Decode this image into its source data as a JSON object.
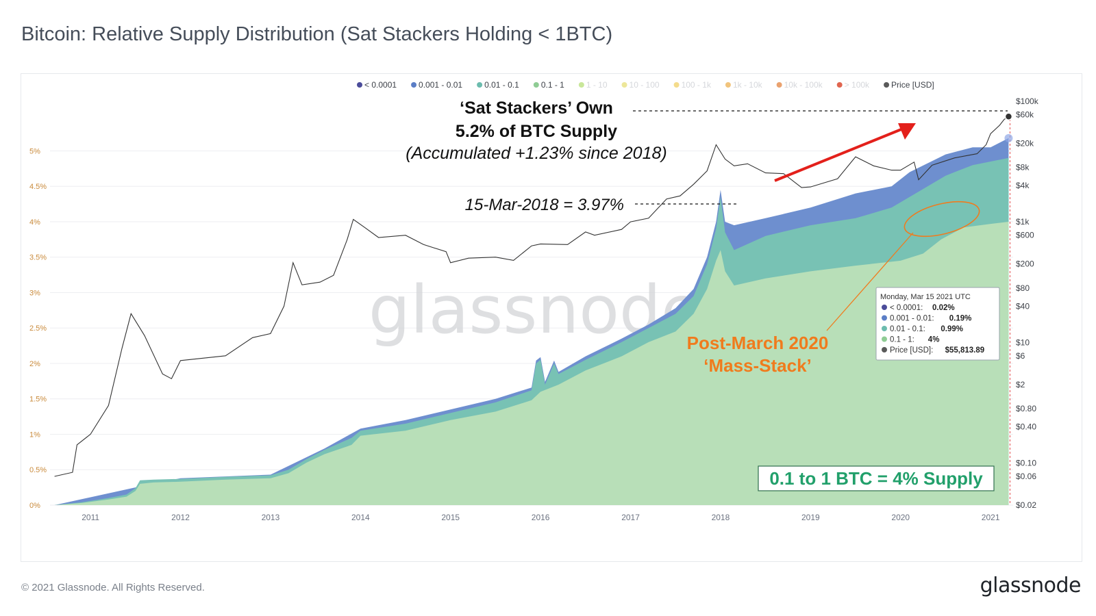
{
  "title": "Bitcoin: Relative Supply Distribution (Sat Stackers Holding < 1BTC)",
  "footer": {
    "copyright": "© 2021 Glassnode. All Rights Reserved.",
    "logo": "glassnode"
  },
  "watermark": "glassnode",
  "chart_data": {
    "type": "area",
    "x_ticks": [
      "2011",
      "2012",
      "2013",
      "2014",
      "2015",
      "2016",
      "2017",
      "2018",
      "2019",
      "2020",
      "2021"
    ],
    "x_range": [
      2010.55,
      2021.25
    ],
    "y_left": {
      "ticks": [
        "0%",
        "0.5%",
        "1%",
        "1.5%",
        "2%",
        "2.5%",
        "3%",
        "3.5%",
        "4%",
        "4.5%",
        "5%"
      ],
      "range": [
        0,
        5.7
      ],
      "unit": "%"
    },
    "y_right": {
      "scale": "log",
      "ticks": [
        "$0.02",
        "$0.06",
        "$0.10",
        "$0.40",
        "$0.80",
        "$2",
        "$6",
        "$10",
        "$40",
        "$80",
        "$200",
        "$600",
        "$1k",
        "$4k",
        "$8k",
        "$20k",
        "$60k",
        "$100k"
      ],
      "range": [
        0.02,
        100000
      ]
    },
    "legend": {
      "placement": "top-right",
      "items": [
        {
          "label": "< 0.0001",
          "color": "#4b4c9a",
          "active": true
        },
        {
          "label": "0.001 - 0.01",
          "color": "#5b7ec6",
          "active": true
        },
        {
          "label": "0.01 - 0.1",
          "color": "#6cbcae",
          "active": true
        },
        {
          "label": "0.1 - 1",
          "color": "#8fcc94",
          "active": true
        },
        {
          "label": "1 - 10",
          "color": "#c9e79a",
          "active": false
        },
        {
          "label": "10 - 100",
          "color": "#ede79a",
          "active": false
        },
        {
          "label": "100 - 1k",
          "color": "#f4dc8c",
          "active": false
        },
        {
          "label": "1k - 10k",
          "color": "#f1c47d",
          "active": false
        },
        {
          "label": "10k - 100k",
          "color": "#eaa26f",
          "active": false
        },
        {
          "label": "> 100k",
          "color": "#e0654f",
          "active": false
        },
        {
          "label": "Price [USD]",
          "color": "#5a5a5a",
          "active": true
        }
      ]
    },
    "series": [
      {
        "name": "0.1 - 1",
        "color": "#b8dfb8",
        "points": [
          [
            2010.6,
            0
          ],
          [
            2010.9,
            0.03
          ],
          [
            2011.2,
            0.08
          ],
          [
            2011.4,
            0.12
          ],
          [
            2011.5,
            0.2
          ],
          [
            2011.55,
            0.3
          ],
          [
            2011.7,
            0.32
          ],
          [
            2012.0,
            0.33
          ],
          [
            2012.5,
            0.36
          ],
          [
            2013.0,
            0.38
          ],
          [
            2013.2,
            0.45
          ],
          [
            2013.4,
            0.6
          ],
          [
            2013.6,
            0.72
          ],
          [
            2013.9,
            0.85
          ],
          [
            2014.0,
            0.98
          ],
          [
            2014.5,
            1.05
          ],
          [
            2015.0,
            1.2
          ],
          [
            2015.5,
            1.32
          ],
          [
            2015.9,
            1.48
          ],
          [
            2016.0,
            1.6
          ],
          [
            2016.2,
            1.7
          ],
          [
            2016.5,
            1.9
          ],
          [
            2016.9,
            2.1
          ],
          [
            2017.2,
            2.3
          ],
          [
            2017.5,
            2.45
          ],
          [
            2017.7,
            2.7
          ],
          [
            2017.85,
            3.05
          ],
          [
            2017.95,
            3.45
          ],
          [
            2018.0,
            3.6
          ],
          [
            2018.05,
            3.3
          ],
          [
            2018.15,
            3.1
          ],
          [
            2018.5,
            3.2
          ],
          [
            2019.0,
            3.3
          ],
          [
            2019.5,
            3.38
          ],
          [
            2020.0,
            3.45
          ],
          [
            2020.25,
            3.55
          ],
          [
            2020.45,
            3.75
          ],
          [
            2020.7,
            3.92
          ],
          [
            2021.0,
            3.97
          ],
          [
            2021.2,
            4.0
          ]
        ]
      },
      {
        "name": "0.01 - 0.1",
        "color": "#78c2b4",
        "points": [
          [
            2010.6,
            0
          ],
          [
            2010.9,
            0.04
          ],
          [
            2011.2,
            0.1
          ],
          [
            2011.4,
            0.15
          ],
          [
            2011.5,
            0.24
          ],
          [
            2011.55,
            0.35
          ],
          [
            2011.7,
            0.36
          ],
          [
            2012.0,
            0.37
          ],
          [
            2012.5,
            0.4
          ],
          [
            2013.0,
            0.42
          ],
          [
            2013.2,
            0.5
          ],
          [
            2013.4,
            0.65
          ],
          [
            2013.6,
            0.78
          ],
          [
            2013.9,
            0.95
          ],
          [
            2014.0,
            1.05
          ],
          [
            2014.5,
            1.15
          ],
          [
            2015.0,
            1.3
          ],
          [
            2015.5,
            1.45
          ],
          [
            2015.9,
            1.62
          ],
          [
            2015.95,
            2.0
          ],
          [
            2016.0,
            2.05
          ],
          [
            2016.05,
            1.7
          ],
          [
            2016.15,
            2.0
          ],
          [
            2016.2,
            1.85
          ],
          [
            2016.5,
            2.05
          ],
          [
            2016.9,
            2.3
          ],
          [
            2017.2,
            2.5
          ],
          [
            2017.5,
            2.7
          ],
          [
            2017.7,
            2.95
          ],
          [
            2017.85,
            3.4
          ],
          [
            2017.95,
            3.9
          ],
          [
            2018.0,
            4.35
          ],
          [
            2018.05,
            3.85
          ],
          [
            2018.15,
            3.6
          ],
          [
            2018.5,
            3.8
          ],
          [
            2019.0,
            3.95
          ],
          [
            2019.5,
            4.05
          ],
          [
            2019.9,
            4.2
          ],
          [
            2020.1,
            4.35
          ],
          [
            2020.5,
            4.65
          ],
          [
            2020.8,
            4.8
          ],
          [
            2021.0,
            4.85
          ],
          [
            2021.2,
            4.9
          ]
        ]
      },
      {
        "name": "0.001 - 0.01",
        "color": "#6e8fcf",
        "points": [
          [
            2010.6,
            0
          ],
          [
            2011.5,
            0.25
          ],
          [
            2012.0,
            0.38
          ],
          [
            2013.0,
            0.43
          ],
          [
            2013.6,
            0.8
          ],
          [
            2014.0,
            1.08
          ],
          [
            2014.5,
            1.2
          ],
          [
            2015.0,
            1.35
          ],
          [
            2015.5,
            1.5
          ],
          [
            2015.9,
            1.66
          ],
          [
            2015.95,
            2.04
          ],
          [
            2016.0,
            2.09
          ],
          [
            2016.05,
            1.74
          ],
          [
            2016.15,
            2.04
          ],
          [
            2016.2,
            1.88
          ],
          [
            2016.5,
            2.1
          ],
          [
            2016.9,
            2.35
          ],
          [
            2017.2,
            2.55
          ],
          [
            2017.5,
            2.78
          ],
          [
            2017.7,
            3.05
          ],
          [
            2017.85,
            3.5
          ],
          [
            2017.95,
            4.0
          ],
          [
            2018.0,
            4.45
          ],
          [
            2018.05,
            4.0
          ],
          [
            2018.15,
            3.95
          ],
          [
            2018.5,
            4.05
          ],
          [
            2019.0,
            4.2
          ],
          [
            2019.5,
            4.4
          ],
          [
            2019.9,
            4.5
          ],
          [
            2020.1,
            4.7
          ],
          [
            2020.5,
            4.95
          ],
          [
            2020.8,
            5.05
          ],
          [
            2021.0,
            5.05
          ],
          [
            2021.2,
            5.18
          ]
        ]
      },
      {
        "name": "Price [USD]",
        "color": "#333333",
        "points": [
          [
            2010.6,
            0.06
          ],
          [
            2010.8,
            0.07
          ],
          [
            2010.85,
            0.2
          ],
          [
            2011.0,
            0.3
          ],
          [
            2011.2,
            0.9
          ],
          [
            2011.35,
            8
          ],
          [
            2011.45,
            30
          ],
          [
            2011.6,
            13
          ],
          [
            2011.8,
            3
          ],
          [
            2011.9,
            2.5
          ],
          [
            2012.0,
            5
          ],
          [
            2012.5,
            6
          ],
          [
            2012.8,
            12
          ],
          [
            2013.0,
            14
          ],
          [
            2013.15,
            40
          ],
          [
            2013.25,
            210
          ],
          [
            2013.35,
            90
          ],
          [
            2013.55,
            100
          ],
          [
            2013.7,
            130
          ],
          [
            2013.85,
            500
          ],
          [
            2013.92,
            1100
          ],
          [
            2014.05,
            800
          ],
          [
            2014.2,
            550
          ],
          [
            2014.5,
            600
          ],
          [
            2014.7,
            420
          ],
          [
            2014.95,
            320
          ],
          [
            2015.0,
            210
          ],
          [
            2015.2,
            250
          ],
          [
            2015.5,
            260
          ],
          [
            2015.7,
            230
          ],
          [
            2015.9,
            400
          ],
          [
            2016.0,
            430
          ],
          [
            2016.3,
            420
          ],
          [
            2016.5,
            680
          ],
          [
            2016.6,
            600
          ],
          [
            2016.9,
            750
          ],
          [
            2017.0,
            1000
          ],
          [
            2017.2,
            1150
          ],
          [
            2017.4,
            2400
          ],
          [
            2017.55,
            2700
          ],
          [
            2017.7,
            4200
          ],
          [
            2017.85,
            7000
          ],
          [
            2017.95,
            19000
          ],
          [
            2018.05,
            11000
          ],
          [
            2018.15,
            8500
          ],
          [
            2018.3,
            9200
          ],
          [
            2018.5,
            6500
          ],
          [
            2018.7,
            6300
          ],
          [
            2018.9,
            3700
          ],
          [
            2019.0,
            3800
          ],
          [
            2019.3,
            5200
          ],
          [
            2019.5,
            12000
          ],
          [
            2019.7,
            8500
          ],
          [
            2019.9,
            7200
          ],
          [
            2020.0,
            7200
          ],
          [
            2020.15,
            9800
          ],
          [
            2020.2,
            5000
          ],
          [
            2020.35,
            8700
          ],
          [
            2020.6,
            11500
          ],
          [
            2020.85,
            13500
          ],
          [
            2020.95,
            19000
          ],
          [
            2021.0,
            29000
          ],
          [
            2021.1,
            40000
          ],
          [
            2021.15,
            50000
          ],
          [
            2021.2,
            55813
          ]
        ]
      }
    ],
    "tooltip": {
      "date": "Monday, Mar 15 2021 UTC",
      "rows": [
        {
          "label": "< 0.0001",
          "value": "0.02%",
          "color": "#4b4c9a"
        },
        {
          "label": "0.001 - 0.01",
          "value": "0.19%",
          "color": "#5b7ec6"
        },
        {
          "label": "0.01 - 0.1",
          "value": "0.99%",
          "color": "#6cbcae"
        },
        {
          "label": "0.1 - 1",
          "value": "4%",
          "color": "#8fcc94"
        },
        {
          "label": "Price [USD]",
          "value": "$55,813.89",
          "color": "#5a5a5a"
        }
      ]
    },
    "annotations": {
      "headline_1": "‘Sat Stackers’ Own",
      "headline_2": "5.2% of BTC Supply",
      "headline_3": "(Accumulated +1.23% since 2018)",
      "mar2018": "15-Mar-2018 = 3.97%",
      "mass_stack_1": "Post-March 2020",
      "mass_stack_2": "‘Mass-Stack’",
      "supply_box": "0.1 to 1 BTC = 4% Supply"
    }
  }
}
